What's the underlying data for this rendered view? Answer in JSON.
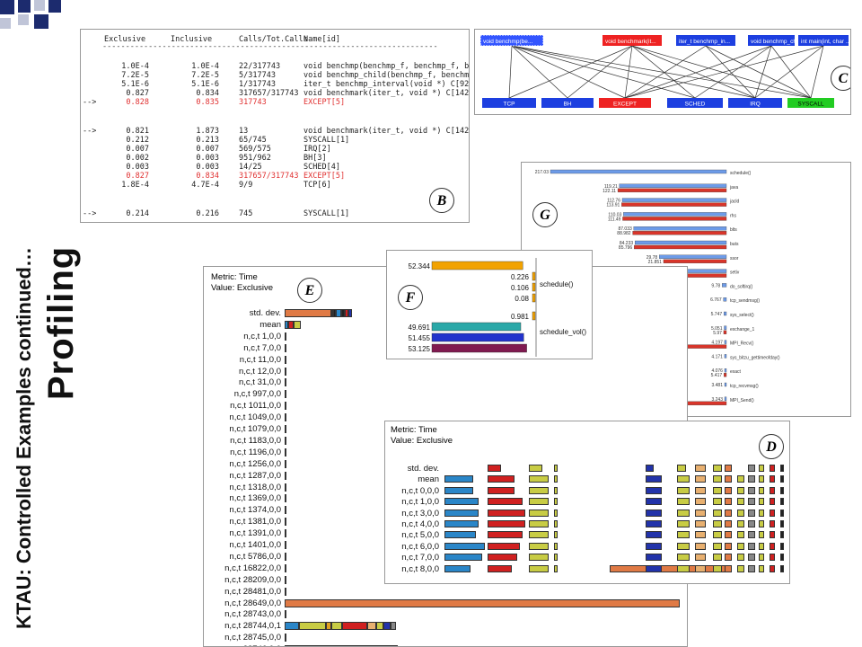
{
  "slide": {
    "title": "KTAU: Controlled Examples continued…",
    "subtitle": "Profiling"
  },
  "panel_b": {
    "badge": "B",
    "headers": [
      "Exclusive",
      "Inclusive",
      "Calls/Tot.Calls",
      "Name[id]"
    ],
    "divider": "-------------------------------------------------------------------------",
    "rows": [
      {
        "mark": "",
        "excl": "1.0E-4",
        "incl": "1.0E-4",
        "calls": "22/317743",
        "name": "void benchmp(benchmp_f, benchmp_f, benchm",
        "red": false
      },
      {
        "mark": "",
        "excl": "7.2E-5",
        "incl": "7.2E-5",
        "calls": "5/317743",
        "name": "void benchmp_child(benchmp_f, benchmp_f, be",
        "red": false
      },
      {
        "mark": "",
        "excl": "5.1E-6",
        "incl": "5.1E-6",
        "calls": "1/317743",
        "name": "iter_t benchmp_interval(void *) C[92]",
        "red": false
      },
      {
        "mark": "",
        "excl": "0.827",
        "incl": "0.834",
        "calls": "317657/317743",
        "name": "void benchmark(iter_t, void *) C[142]",
        "red": false
      },
      {
        "mark": "-->",
        "excl": "0.828",
        "incl": "0.835",
        "calls": "317743",
        "name": "EXCEPT[5]",
        "red": true
      },
      {
        "mark": "-->",
        "excl": "0.821",
        "incl": "1.873",
        "calls": "13",
        "name": "void benchmark(iter_t, void *) C[142]",
        "red": false
      },
      {
        "mark": "",
        "excl": "0.212",
        "incl": "0.213",
        "calls": "65/745",
        "name": "SYSCALL[1]",
        "red": false
      },
      {
        "mark": "",
        "excl": "0.007",
        "incl": "0.007",
        "calls": "569/575",
        "name": "IRQ[2]",
        "red": false
      },
      {
        "mark": "",
        "excl": "0.002",
        "incl": "0.003",
        "calls": "951/962",
        "name": "BH[3]",
        "red": false
      },
      {
        "mark": "",
        "excl": "0.003",
        "incl": "0.003",
        "calls": "14/25",
        "name": "SCHED[4]",
        "red": false
      },
      {
        "mark": "",
        "excl": "0.827",
        "incl": "0.834",
        "calls": "317657/317743",
        "name": "EXCEPT[5]",
        "red": true
      },
      {
        "mark": "",
        "excl": "1.8E-4",
        "incl": "4.7E-4",
        "calls": "9/9",
        "name": "TCP[6]",
        "red": false
      },
      {
        "mark": "-->",
        "excl": "0.214",
        "incl": "0.216",
        "calls": "745",
        "name": "SYSCALL[1]",
        "red": false
      }
    ]
  },
  "panel_c": {
    "badge": "C",
    "top_nodes": [
      {
        "label": "void benchmp(be...",
        "color": "#3355ff"
      },
      {
        "label": "void benchmark(it...",
        "color": "#ee2222"
      },
      {
        "label": "iter_t benchmp_in...",
        "color": "#1d3fe0"
      },
      {
        "label": "void benchmp_chi...",
        "color": "#1d3fe0"
      },
      {
        "label": "int main(int, char ...",
        "color": "#1d3fe0"
      }
    ],
    "bottom_nodes": [
      {
        "label": "TCP",
        "color": "#1d3fe0"
      },
      {
        "label": "BH",
        "color": "#1d3fe0"
      },
      {
        "label": "EXCEPT",
        "color": "#ee2222"
      },
      {
        "label": "SCHED",
        "color": "#1d3fe0"
      },
      {
        "label": "IRQ",
        "color": "#1d3fe0"
      },
      {
        "label": "SYSCALL",
        "color": "#22cc22"
      }
    ]
  },
  "panel_g": {
    "badge": "G",
    "items": [
      {
        "name": "schedule()",
        "a": "217.03",
        "b": ""
      },
      {
        "name": "java",
        "a": "119.21",
        "b": "122.11"
      },
      {
        "name": "jacld",
        "a": "112.76",
        "b": "113.91"
      },
      {
        "name": "rhs",
        "a": "110.03",
        "b": "111.49"
      },
      {
        "name": "blts",
        "a": "87.033",
        "b": "88.982"
      },
      {
        "name": "buts",
        "a": "84.233",
        "b": "85.796"
      },
      {
        "name": "ssor",
        "a": "29.78",
        "b": "21.851"
      },
      {
        "name": "setiv",
        "a": "9.886",
        "b": "10.947"
      },
      {
        "name": "do_softirq()",
        "a": "9.78",
        "b": ""
      },
      {
        "name": "tcp_sendmsg()",
        "a": "6.767",
        "b": ""
      },
      {
        "name": "sys_select()",
        "a": "5.747",
        "b": ""
      },
      {
        "name": "exchange_1",
        "a": "5.051",
        "b": "5.97"
      },
      {
        "name": "MPI_Recv()",
        "a": "4.197",
        "b": "125.91"
      },
      {
        "name": "sys_bitzu_gettimeofday()",
        "a": "4.171",
        "b": ""
      },
      {
        "name": "exact",
        "a": "4.076",
        "b": "5.417"
      },
      {
        "name": "tcp_recvmsg()",
        "a": "3.481",
        "b": ""
      },
      {
        "name": "MPI_Send()",
        "a": "3.243",
        "b": "108.87"
      }
    ]
  },
  "panel_f": {
    "badge": "F",
    "group1_label": "schedule()",
    "group1": [
      {
        "value": "52.344",
        "frac": 0.92,
        "color": "#f2a200"
      },
      {
        "value": "0.226",
        "frac": 0.0,
        "color": "#f2a200"
      },
      {
        "value": "0.106",
        "frac": 0.0,
        "color": "#f2a200"
      },
      {
        "value": "0.08",
        "frac": 0.0,
        "color": "#f2a200"
      }
    ],
    "group2_label": "schedule_vol()",
    "group2": [
      {
        "value": "0.981",
        "frac": 0.02,
        "color": "#f2a200"
      },
      {
        "value": "49.691",
        "frac": 0.9,
        "color": "#2aa8a8"
      },
      {
        "value": "51.455",
        "frac": 0.93,
        "color": "#2233cc"
      },
      {
        "value": "53.125",
        "frac": 0.96,
        "color": "#801a50"
      }
    ]
  },
  "panel_e": {
    "badge": "E",
    "metric": "Metric: Time",
    "value": "Value: Exclusive",
    "rows": [
      "std. dev.",
      "mean",
      "n,c,t 1,0,0",
      "n,c,t 7,0,0",
      "n,c,t 11,0,0",
      "n,c,t 12,0,0",
      "n,c,t 31,0,0",
      "n,c,t 997,0,0",
      "n,c,t 1011,0,0",
      "n,c,t 1049,0,0",
      "n,c,t 1079,0,0",
      "n,c,t 1183,0,0",
      "n,c,t 1196,0,0",
      "n,c,t 1256,0,0",
      "n,c,t 1287,0,0",
      "n,c,t 1318,0,0",
      "n,c,t 1369,0,0",
      "n,c,t 1374,0,0",
      "n,c,t 1381,0,0",
      "n,c,t 1391,0,0",
      "n,c,t 1401,0,0",
      "n,c,t 5786,0,0",
      "n,c,t 16822,0,0",
      "n,c,t 28209,0,0",
      "n,c,t 28481,0,0",
      "n,c,t 28649,0,0",
      "n,c,t 28743,0,0",
      "n,c,t 28744,0,1",
      "n,c,t 28745,0,0",
      "n,c,t 28746,0,0"
    ]
  },
  "panel_d": {
    "badge": "D",
    "metric": "Metric: Time",
    "value": "Value: Exclusive",
    "rows": [
      "std. dev.",
      "mean",
      "n,c,t 0,0,0",
      "n,c,t 1,0,0",
      "n,c,t 3,0,0",
      "n,c,t 4,0,0",
      "n,c,t 5,0,0",
      "n,c,t 6,0,0",
      "n,c,t 7,0,0",
      "n,c,t 8,0,0"
    ]
  }
}
